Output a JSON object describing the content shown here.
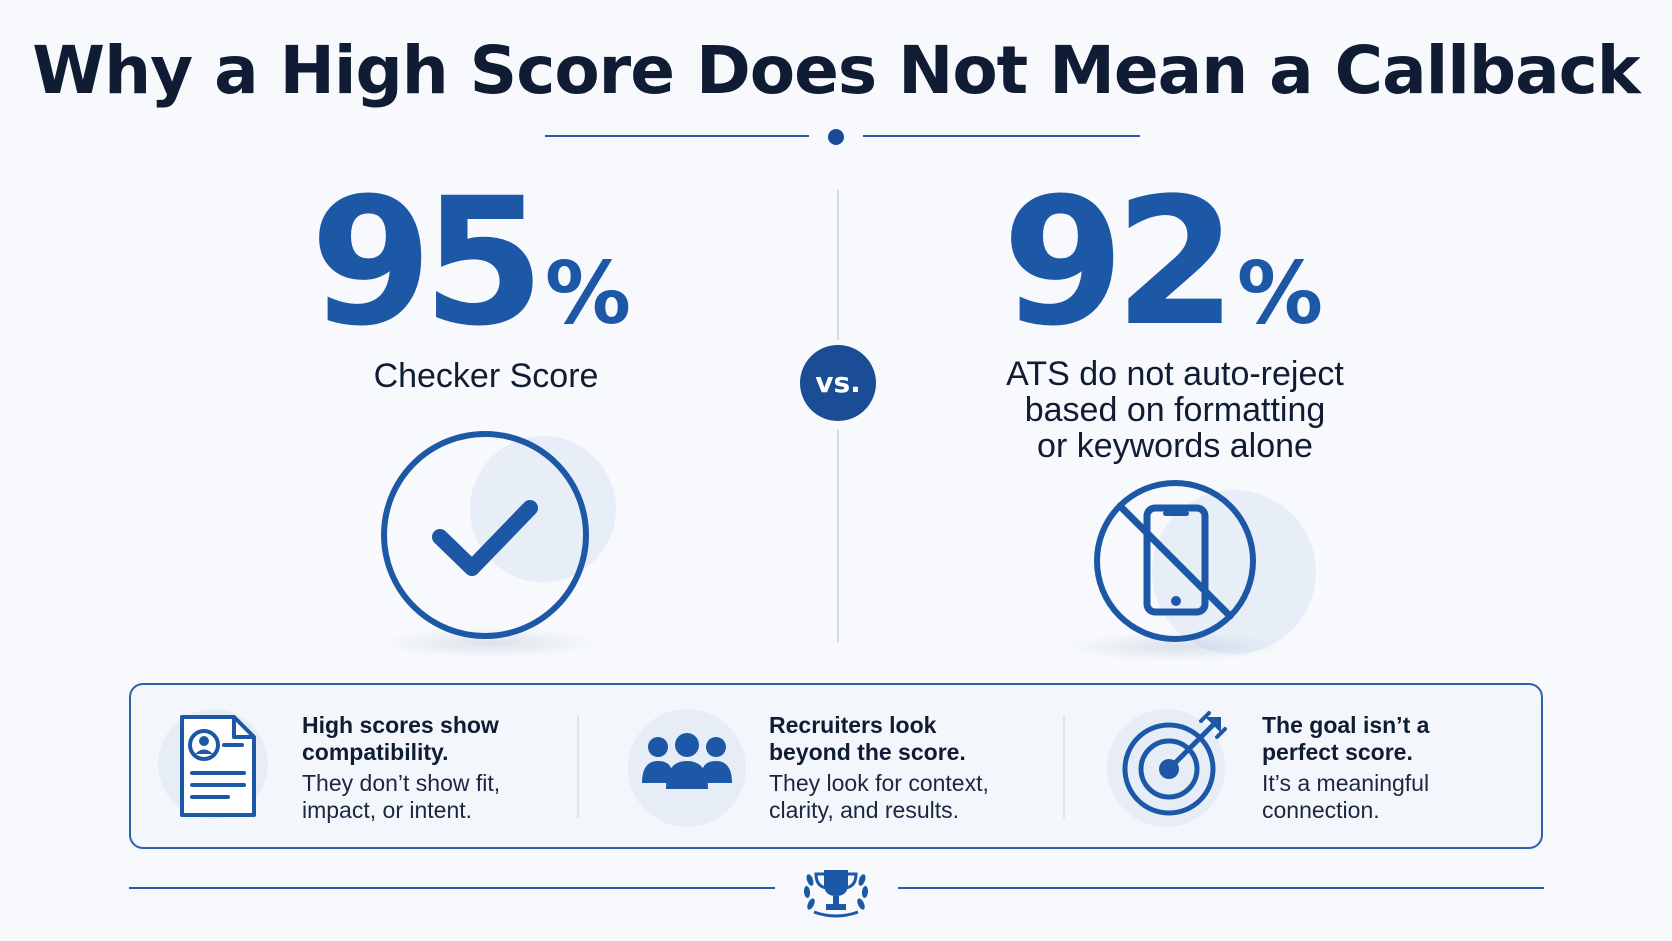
{
  "title": "Why a High Score Does Not Mean a Callback",
  "colors": {
    "primary": "#1d58a6",
    "dark": "#0f1c33",
    "accent": "#2a5aa6"
  },
  "left_stat": {
    "value": "95",
    "unit": "%",
    "label": "Checker Score",
    "icon": "checkmark-circle-icon"
  },
  "vs_label": "vs.",
  "right_stat": {
    "value": "92",
    "unit": "%",
    "label_lines": [
      "ATS do not auto-reject",
      "based on formatting",
      "or keywords alone"
    ],
    "icon": "no-phone-icon"
  },
  "points": [
    {
      "icon": "resume-document-icon",
      "heading_lines": [
        "High scores show",
        "compatibility."
      ],
      "body_lines": [
        "They don’t show fit,",
        "impact, or intent."
      ]
    },
    {
      "icon": "people-group-icon",
      "heading_lines": [
        "Recruiters look",
        "beyond the score."
      ],
      "body_lines": [
        "They look for context,",
        "clarity, and results."
      ]
    },
    {
      "icon": "target-arrow-icon",
      "heading_lines": [
        "The goal isn’t a",
        "perfect score."
      ],
      "body_lines": [
        "It’s a meaningful",
        "connection."
      ]
    }
  ],
  "footer_icon": "trophy-laurel-icon"
}
